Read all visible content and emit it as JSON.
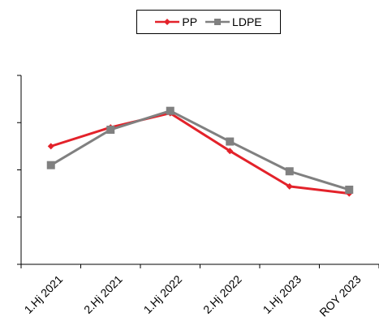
{
  "chart_data": {
    "type": "line",
    "categories": [
      "1.Hj 2021",
      "2.Hj 2021",
      "1.Hj 2022",
      "2.Hj 2022",
      "1.Hj 2023",
      "ROY 2023"
    ],
    "series": [
      {
        "name": "PP",
        "color": "#e3222a",
        "marker": "diamond",
        "values": [
          2.5,
          2.9,
          3.2,
          2.4,
          1.65,
          1.5
        ]
      },
      {
        "name": "LDPE",
        "color": "#808080",
        "marker": "square",
        "values": [
          2.1,
          2.85,
          3.25,
          2.6,
          1.97,
          1.58
        ]
      }
    ],
    "ylim": [
      0,
      4
    ],
    "yticks": [
      0,
      1,
      2,
      3,
      4
    ],
    "ytick_labels_visible": false,
    "grid": false,
    "legend": "top-center",
    "title": "",
    "xlabel": "",
    "ylabel": ""
  }
}
